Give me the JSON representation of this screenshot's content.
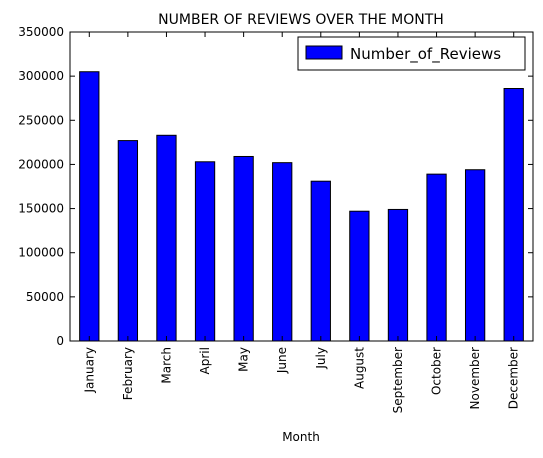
{
  "chart_data": {
    "type": "bar",
    "title": "NUMBER OF REVIEWS OVER THE MONTH",
    "xlabel": "Month",
    "ylabel": "",
    "categories": [
      "January",
      "February",
      "March",
      "April",
      "May",
      "June",
      "July",
      "August",
      "September",
      "October",
      "November",
      "December"
    ],
    "series": [
      {
        "name": "Number_of_Reviews",
        "values": [
          305000,
          227000,
          233000,
          203000,
          209000,
          202000,
          181000,
          147000,
          149000,
          189000,
          194000,
          286000
        ],
        "color": "#0000ff"
      }
    ],
    "ylim": [
      0,
      350000
    ],
    "yticks": [
      "0",
      "50000",
      "100000",
      "150000",
      "200000",
      "250000",
      "300000",
      "350000"
    ],
    "legend_position": "top-right",
    "grid": false
  }
}
